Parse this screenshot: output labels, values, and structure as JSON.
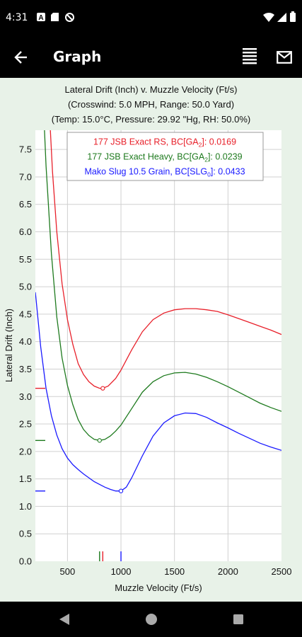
{
  "status_bar": {
    "time": "4:31"
  },
  "app_bar": {
    "title": "Graph",
    "back_icon": "arrow-left-icon",
    "menu_icon": "list-lines-icon",
    "mail_icon": "envelope-icon"
  },
  "nav_bar": {
    "back_icon": "triangle-back-icon",
    "home_icon": "circle-home-icon",
    "recents_icon": "square-recents-icon"
  },
  "colors": {
    "series_red": "#e8202a",
    "series_green": "#1e7a1e",
    "series_blue": "#1a1aff",
    "plot_background": "#ffffff",
    "content_background": "#e8f2e8"
  },
  "chart_data": {
    "type": "line",
    "title": "Lateral Drift (Inch) v. Muzzle Velocity (Ft/s)",
    "subtitle_1": "(Crosswind: 5.0 MPH, Range: 50.0 Yard)",
    "subtitle_2": "(Temp: 15.0°C, Pressure: 29.92 \"Hg, RH: 50.0%)",
    "xlabel": "Muzzle Velocity (Ft/s)",
    "ylabel": "Lateral Drift (Inch)",
    "xlim": [
      200,
      2500
    ],
    "ylim": [
      0,
      7.85
    ],
    "x_ticks": [
      500,
      1000,
      1500,
      2000,
      2500
    ],
    "y_ticks": [
      0.0,
      0.5,
      1.0,
      1.5,
      2.0,
      2.5,
      3.0,
      3.5,
      4.0,
      4.5,
      5.0,
      5.5,
      6.0,
      6.5,
      7.0,
      7.5
    ],
    "grid": true,
    "legend_position": "top-right",
    "series": [
      {
        "name": "177 JSB Exact RS, BC[GA₂]: 0.0169",
        "name_main": "177 JSB Exact RS, BC[GA",
        "name_sub": "2",
        "name_tail": "]: 0.0169",
        "color": "#e8202a",
        "marker": {
          "x": 830,
          "y": 3.15
        },
        "initial": 3.15,
        "points": [
          [
            340,
            7.85
          ],
          [
            360,
            7.1
          ],
          [
            400,
            6.0
          ],
          [
            450,
            5.05
          ],
          [
            500,
            4.4
          ],
          [
            550,
            3.95
          ],
          [
            600,
            3.6
          ],
          [
            650,
            3.4
          ],
          [
            700,
            3.27
          ],
          [
            750,
            3.19
          ],
          [
            800,
            3.15
          ],
          [
            830,
            3.15
          ],
          [
            880,
            3.19
          ],
          [
            950,
            3.33
          ],
          [
            1000,
            3.48
          ],
          [
            1100,
            3.85
          ],
          [
            1200,
            4.18
          ],
          [
            1300,
            4.4
          ],
          [
            1400,
            4.52
          ],
          [
            1500,
            4.58
          ],
          [
            1600,
            4.6
          ],
          [
            1700,
            4.6
          ],
          [
            1800,
            4.58
          ],
          [
            1900,
            4.55
          ],
          [
            2000,
            4.49
          ],
          [
            2100,
            4.42
          ],
          [
            2200,
            4.35
          ],
          [
            2300,
            4.28
          ],
          [
            2400,
            4.21
          ],
          [
            2500,
            4.13
          ]
        ]
      },
      {
        "name": "177 JSB Exact Heavy, BC[GA₂]: 0.0239",
        "name_main": "177 JSB Exact Heavy, BC[GA",
        "name_sub": "2",
        "name_tail": "]: 0.0239",
        "color": "#1e7a1e",
        "marker": {
          "x": 800,
          "y": 2.2
        },
        "initial": 2.2,
        "points": [
          [
            285,
            7.85
          ],
          [
            300,
            7.2
          ],
          [
            350,
            5.6
          ],
          [
            400,
            4.45
          ],
          [
            450,
            3.7
          ],
          [
            500,
            3.2
          ],
          [
            550,
            2.85
          ],
          [
            600,
            2.58
          ],
          [
            650,
            2.4
          ],
          [
            700,
            2.29
          ],
          [
            750,
            2.22
          ],
          [
            800,
            2.2
          ],
          [
            850,
            2.22
          ],
          [
            900,
            2.28
          ],
          [
            950,
            2.37
          ],
          [
            1000,
            2.48
          ],
          [
            1100,
            2.78
          ],
          [
            1200,
            3.08
          ],
          [
            1300,
            3.27
          ],
          [
            1400,
            3.38
          ],
          [
            1500,
            3.43
          ],
          [
            1600,
            3.44
          ],
          [
            1700,
            3.41
          ],
          [
            1800,
            3.35
          ],
          [
            1900,
            3.27
          ],
          [
            2000,
            3.18
          ],
          [
            2100,
            3.08
          ],
          [
            2200,
            2.98
          ],
          [
            2300,
            2.88
          ],
          [
            2400,
            2.8
          ],
          [
            2500,
            2.73
          ]
        ]
      },
      {
        "name": "Mako Slug 10.5 Grain, BC[SLG₀]: 0.0433",
        "name_main": "Mako Slug 10.5 Grain, BC[SLG",
        "name_sub": "0",
        "name_tail": "]: 0.0433",
        "color": "#1a1aff",
        "marker": {
          "x": 1000,
          "y": 1.28
        },
        "initial": 1.28,
        "points": [
          [
            200,
            4.9
          ],
          [
            250,
            3.9
          ],
          [
            300,
            3.15
          ],
          [
            350,
            2.65
          ],
          [
            400,
            2.3
          ],
          [
            450,
            2.05
          ],
          [
            500,
            1.88
          ],
          [
            550,
            1.76
          ],
          [
            600,
            1.67
          ],
          [
            650,
            1.59
          ],
          [
            700,
            1.52
          ],
          [
            750,
            1.45
          ],
          [
            800,
            1.4
          ],
          [
            850,
            1.35
          ],
          [
            900,
            1.31
          ],
          [
            950,
            1.28
          ],
          [
            1000,
            1.28
          ],
          [
            1050,
            1.35
          ],
          [
            1100,
            1.52
          ],
          [
            1200,
            1.92
          ],
          [
            1300,
            2.28
          ],
          [
            1400,
            2.52
          ],
          [
            1500,
            2.65
          ],
          [
            1600,
            2.7
          ],
          [
            1700,
            2.69
          ],
          [
            1800,
            2.62
          ],
          [
            1900,
            2.52
          ],
          [
            2000,
            2.43
          ],
          [
            2100,
            2.33
          ],
          [
            2200,
            2.24
          ],
          [
            2300,
            2.15
          ],
          [
            2400,
            2.08
          ],
          [
            2500,
            2.02
          ]
        ]
      }
    ]
  }
}
